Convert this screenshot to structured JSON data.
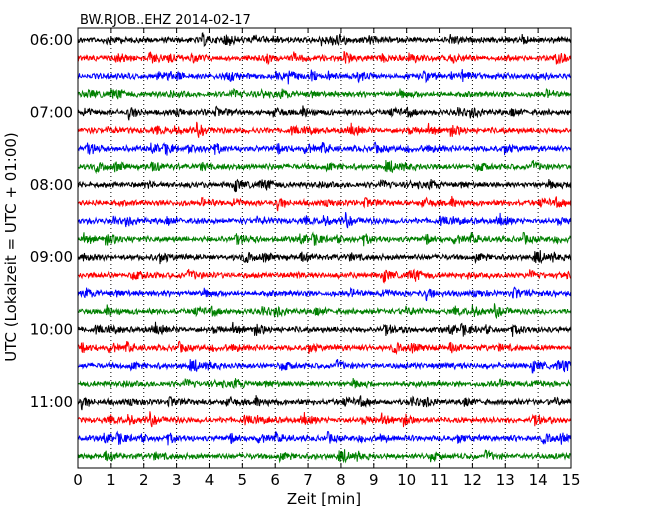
{
  "chart_data": {
    "type": "line",
    "title": "BW.RJOB..EHZ 2014-02-17",
    "xlabel": "Zeit  [min]",
    "ylabel": "UTC (Lokalzeit = UTC + 01:00)",
    "xlim": [
      0,
      15
    ],
    "x_ticks": [
      "0",
      "1",
      "2",
      "3",
      "4",
      "5",
      "6",
      "7",
      "8",
      "9",
      "10",
      "11",
      "12",
      "13",
      "14",
      "15"
    ],
    "y_ticks": [
      "06:00",
      "07:00",
      "08:00",
      "09:00",
      "10:00",
      "11:00"
    ],
    "grid": "vertical dotted lines at each minute",
    "legend": "none",
    "trace_colors": [
      "#000000",
      "#ff0000",
      "#0000ff",
      "#008000"
    ],
    "traces_per_hour": 4,
    "trace_count": 24,
    "trace_interval_minutes": 15,
    "start_time": "06:00"
  }
}
